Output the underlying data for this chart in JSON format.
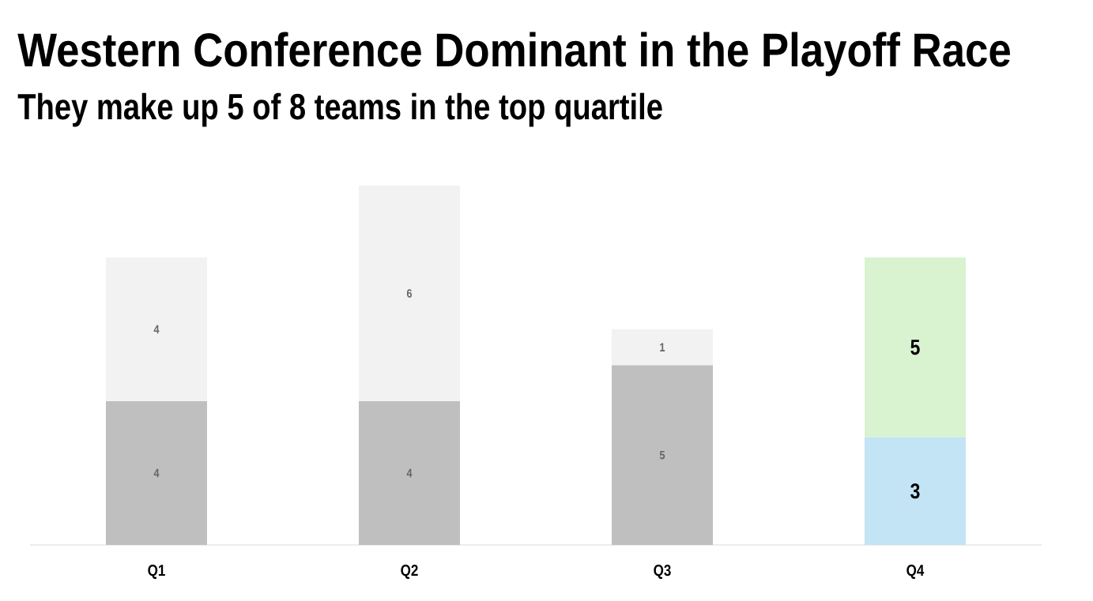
{
  "chart_data": {
    "type": "bar",
    "title": "Western Conference Dominant in the Playoff Race",
    "subtitle": "They make up 5 of 8 teams in the top quartile",
    "categories": [
      "Q1",
      "Q2",
      "Q3",
      "Q4"
    ],
    "stacked": true,
    "data_labels": true,
    "series": [
      {
        "values": [
          4,
          4,
          5,
          3
        ],
        "colors": [
          "#bfbfbf",
          "#bfbfbf",
          "#bfbfbf",
          "#c2e4f5"
        ]
      },
      {
        "values": [
          4,
          6,
          1,
          5
        ],
        "colors": [
          "#f2f2f2",
          "#f2f2f2",
          "#f2f2f2",
          "#d9f2d0"
        ]
      }
    ]
  }
}
